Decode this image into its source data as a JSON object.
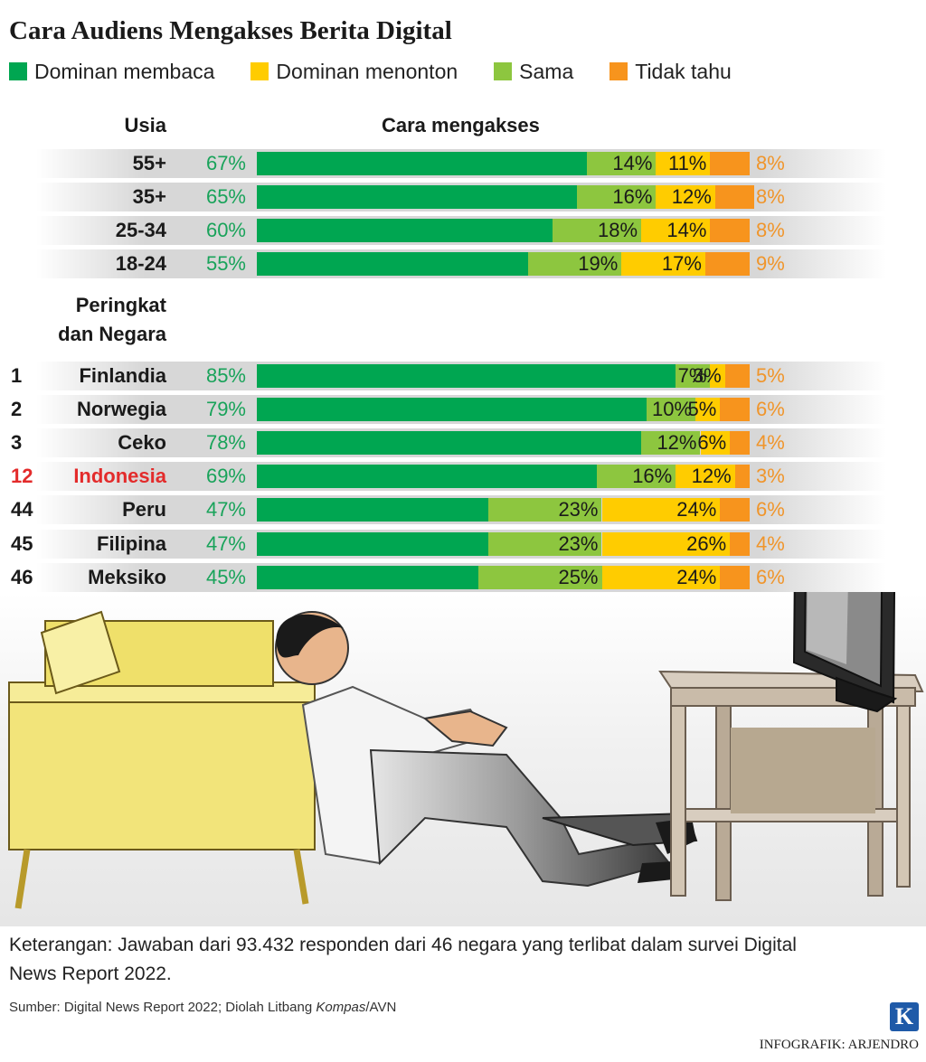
{
  "title": "Cara Audiens Mengakses Berita Digital",
  "legend": [
    {
      "label": "Dominan membaca",
      "color": "#00a651"
    },
    {
      "label": "Dominan menonton",
      "color": "#ffcc00"
    },
    {
      "label": "Sama",
      "color": "#8dc63f"
    },
    {
      "label": "Tidak tahu",
      "color": "#f7941d"
    }
  ],
  "headers": {
    "usia": "Usia",
    "cara": "Cara mengakses",
    "negara_line1": "Peringkat",
    "negara_line2": "dan Negara"
  },
  "chart_data": {
    "type": "bar",
    "stacked": true,
    "orientation": "horizontal",
    "title": "Cara Audiens Mengakses Berita Digital",
    "units": "%",
    "series_order": [
      "Dominan membaca",
      "Sama",
      "Dominan menonton",
      "Tidak tahu"
    ],
    "groups": [
      {
        "header": "Usia",
        "rows": [
          {
            "label": "55+",
            "values": [
              67,
              14,
              11,
              8
            ]
          },
          {
            "label": "35+",
            "values": [
              65,
              16,
              12,
              8
            ]
          },
          {
            "label": "25-34",
            "values": [
              60,
              18,
              14,
              8
            ]
          },
          {
            "label": "18-24",
            "values": [
              55,
              19,
              17,
              9
            ]
          }
        ]
      },
      {
        "header": "Peringkat dan Negara",
        "rows": [
          {
            "rank": "1",
            "label": "Finlandia",
            "values": [
              85,
              7,
              3,
              5
            ]
          },
          {
            "rank": "2",
            "label": "Norwegia",
            "values": [
              79,
              10,
              5,
              6
            ]
          },
          {
            "rank": "3",
            "label": "Ceko",
            "values": [
              78,
              12,
              6,
              4
            ]
          },
          {
            "rank": "12",
            "label": "Indonesia",
            "values": [
              69,
              16,
              12,
              3
            ],
            "highlight": true
          },
          {
            "rank": "44",
            "label": "Peru",
            "values": [
              47,
              23,
              24,
              6
            ]
          },
          {
            "rank": "45",
            "label": "Filipina",
            "values": [
              47,
              23,
              26,
              4
            ]
          },
          {
            "rank": "46",
            "label": "Meksiko",
            "values": [
              45,
              25,
              24,
              6
            ]
          }
        ]
      }
    ],
    "colors": {
      "membaca": "#00a651",
      "sama": "#8dc63f",
      "menonton": "#ffcc00",
      "tidak_tahu": "#f7941d",
      "highlight": "#e32b2b"
    }
  },
  "note": {
    "label": "Keterangan:",
    "text": "Jawaban dari 93.432 responden dari 46 negara yang terlibat dalam survei Digital News Report 2022."
  },
  "source": {
    "prefix": "Sumber: Digital News Report 2022; Diolah Litbang ",
    "italic": "Kompas",
    "suffix": "/AVN"
  },
  "logo_letter": "K",
  "credit": "INFOGRAFIK: ARJENDRO"
}
